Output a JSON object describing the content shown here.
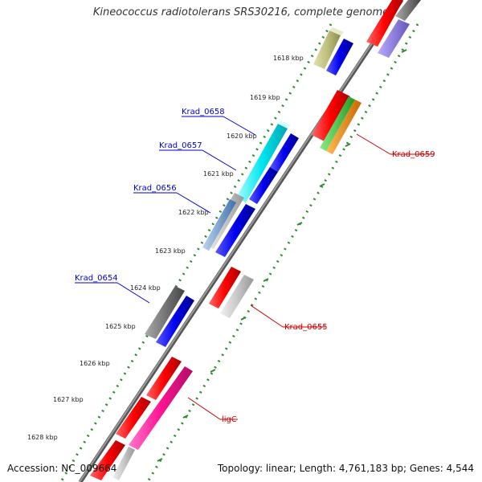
{
  "title": "Kineococcus radiotolerans SRS30216, complete genome",
  "footer": {
    "accession": "Accession: NC_009664",
    "topology": "Topology: linear; Length: 4,761,183 bp; Genes: 4,544"
  },
  "kbp_markers": [
    "1618 kbp",
    "1619 kbp",
    "1620 kbp",
    "1621 kbp",
    "1622 kbp",
    "1623 kbp",
    "1624 kbp",
    "1625 kbp",
    "1626 kbp",
    "1627 kbp",
    "1628 kbp"
  ],
  "gene_labels_left": [
    "Krad_0658",
    "Krad_0657",
    "Krad_0656",
    "Krad_0654"
  ],
  "gene_labels_right": [
    "Krad_0659",
    "Krad_0655",
    "ligC"
  ],
  "colors": {
    "red": "#ff0000",
    "blue": "#0000ee",
    "cyan": "#00e5f0",
    "gray": "#777777",
    "lightgray": "#c8c8c8",
    "steelblue": "#4f86c8",
    "olive": "#c0c080",
    "green": "#33cc33",
    "orange": "#ff8800",
    "magenta": "#ff1493",
    "lavender": "#8877dd",
    "dotted": "#2e8b2e",
    "blue_label": "#0000cc",
    "red_label": "#cc0000"
  }
}
